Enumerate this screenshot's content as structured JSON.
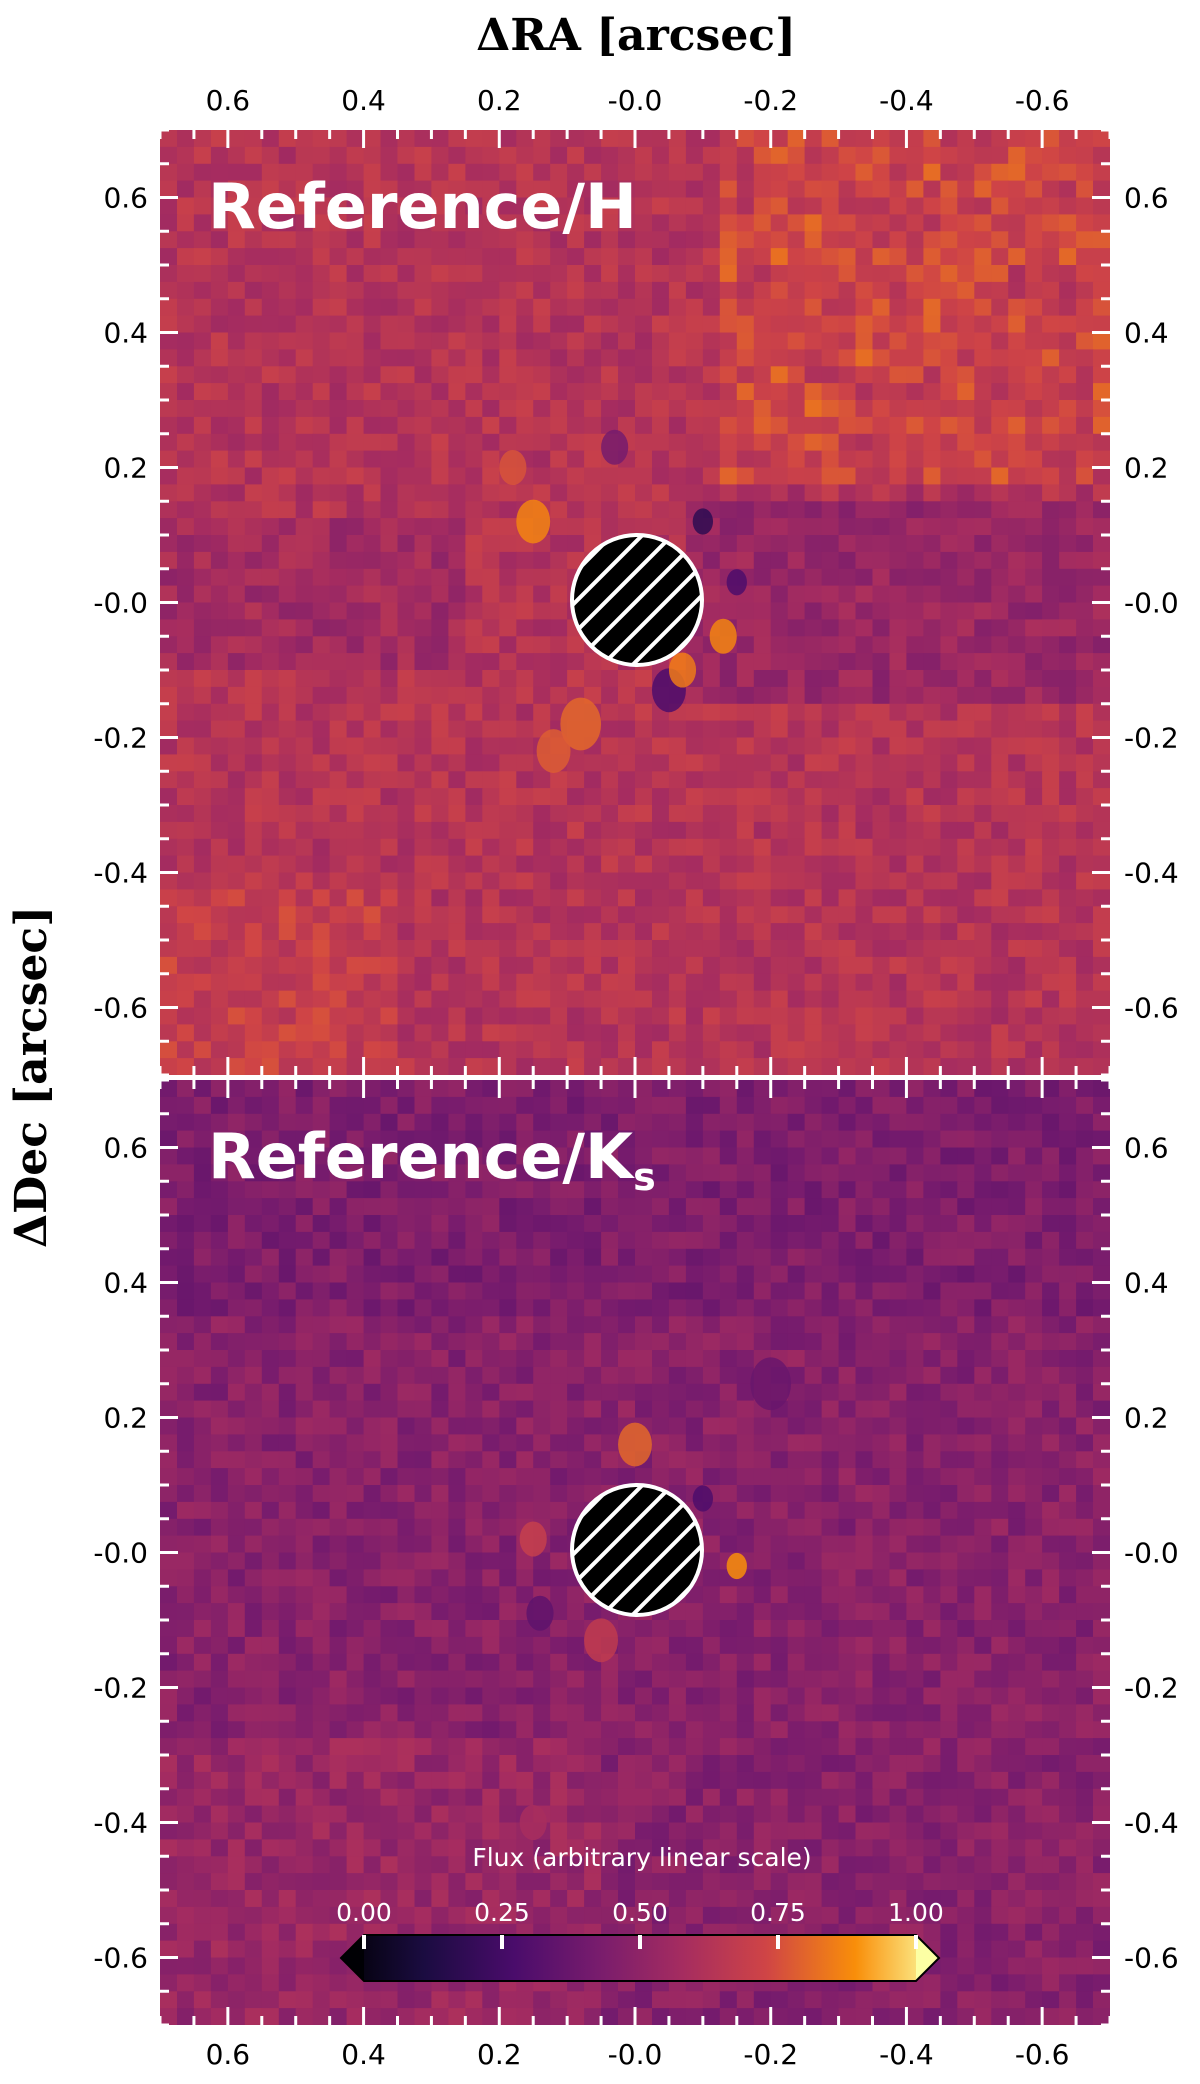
{
  "chart_data": {
    "type": "heatmap",
    "xlabel": "ΔRA [arcsec]",
    "ylabel": "ΔDec [arcsec]",
    "xlim": [
      0.7,
      -0.7
    ],
    "ylim": [
      -0.7,
      0.7
    ],
    "x_ticks": [
      0.6,
      0.4,
      0.2,
      0.0,
      -0.2,
      -0.4,
      -0.6
    ],
    "x_tick_labels": [
      "0.6",
      "0.4",
      "0.2",
      "-0.0",
      "-0.2",
      "-0.4",
      "-0.6"
    ],
    "y_ticks": [
      0.6,
      0.4,
      0.2,
      0.0,
      -0.2,
      -0.4,
      -0.6
    ],
    "y_tick_labels": [
      "0.6",
      "0.4",
      "0.2",
      "-0.0",
      "-0.2",
      "-0.4",
      "-0.6"
    ],
    "colormap": "inferno",
    "mask": {
      "center": [
        0.0,
        0.0
      ],
      "radius_arcsec": 0.095,
      "fill": "#000000",
      "hatch": "white diagonal"
    },
    "panels": [
      {
        "label_main": "Reference/H",
        "label_sub": "",
        "mean_flux": 0.62
      },
      {
        "label_main": "Reference/K",
        "label_sub": "s",
        "mean_flux": 0.48
      }
    ],
    "colorbar": {
      "title": "Flux (arbitrary linear scale)",
      "ticks": [
        0.0,
        0.25,
        0.5,
        0.75,
        1.0
      ],
      "tick_labels": [
        "0.00",
        "0.25",
        "0.50",
        "0.75",
        "1.00"
      ],
      "range": [
        0.0,
        1.0
      ],
      "extend": "both"
    }
  }
}
